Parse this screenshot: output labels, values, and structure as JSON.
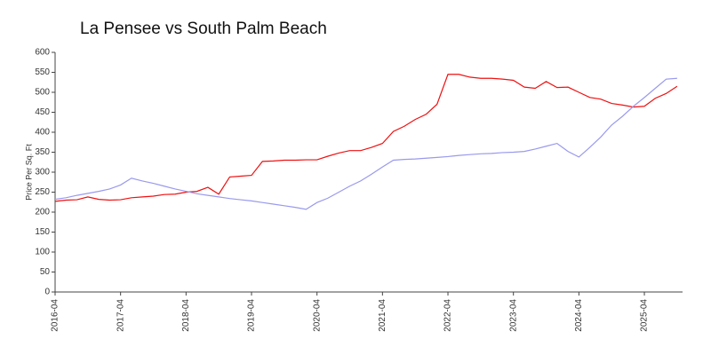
{
  "chart_data": {
    "type": "line",
    "title": "La Pensee vs South Palm Beach",
    "y_label": "Price Per Sq. Ft",
    "x": [
      "2016-04",
      "2016-06",
      "2016-08",
      "2016-10",
      "2016-12",
      "2017-02",
      "2017-04",
      "2017-06",
      "2017-08",
      "2017-10",
      "2017-12",
      "2018-02",
      "2018-04",
      "2018-06",
      "2018-08",
      "2018-10",
      "2018-12",
      "2019-02",
      "2019-04",
      "2019-06",
      "2019-08",
      "2019-10",
      "2019-12",
      "2020-02",
      "2020-04",
      "2020-06",
      "2020-08",
      "2020-10",
      "2020-12",
      "2021-02",
      "2021-04",
      "2021-06",
      "2021-08",
      "2021-10",
      "2021-12",
      "2022-02",
      "2022-04",
      "2022-06",
      "2022-08",
      "2022-10",
      "2022-12",
      "2023-02",
      "2023-04",
      "2023-06",
      "2023-08",
      "2023-10",
      "2023-12",
      "2024-02",
      "2024-04",
      "2024-06",
      "2024-08",
      "2024-10",
      "2024-12",
      "2025-02",
      "2025-04",
      "2025-06",
      "2025-08",
      "2025-10"
    ],
    "series": [
      {
        "color": "#ee1111",
        "values": [
          227,
          230,
          231,
          238,
          232,
          230,
          231,
          236,
          238,
          240,
          244,
          245,
          250,
          252,
          262,
          245,
          288,
          290,
          292,
          327,
          328,
          330,
          330,
          331,
          331,
          340,
          348,
          354,
          354,
          362,
          372,
          402,
          415,
          432,
          445,
          470,
          545,
          545,
          538,
          535,
          535,
          533,
          530,
          513,
          510,
          527,
          512,
          513,
          500,
          487,
          483,
          472,
          468,
          463,
          465,
          485,
          497,
          515
        ]
      },
      {
        "color": "#9999ee",
        "values": [
          232,
          236,
          242,
          247,
          252,
          258,
          268,
          285,
          278,
          272,
          265,
          258,
          252,
          246,
          242,
          238,
          234,
          231,
          228,
          224,
          220,
          216,
          212,
          207,
          224,
          235,
          250,
          265,
          278,
          295,
          313,
          330,
          332,
          333,
          335,
          337,
          339,
          342,
          344,
          346,
          347,
          349,
          350,
          352,
          358,
          365,
          372,
          352,
          338,
          362,
          388,
          418,
          440,
          465,
          487,
          510,
          533,
          535
        ]
      }
    ],
    "xlim": [
      "2016-04",
      "2025-11"
    ],
    "xticks": [
      "2016-04",
      "2017-04",
      "2018-04",
      "2019-04",
      "2020-04",
      "2021-04",
      "2022-04",
      "2023-04",
      "2024-04",
      "2025-04"
    ],
    "ylim": [
      0,
      600
    ],
    "yticks": [
      0,
      50,
      100,
      150,
      200,
      250,
      300,
      350,
      400,
      450,
      500,
      550,
      600
    ]
  }
}
